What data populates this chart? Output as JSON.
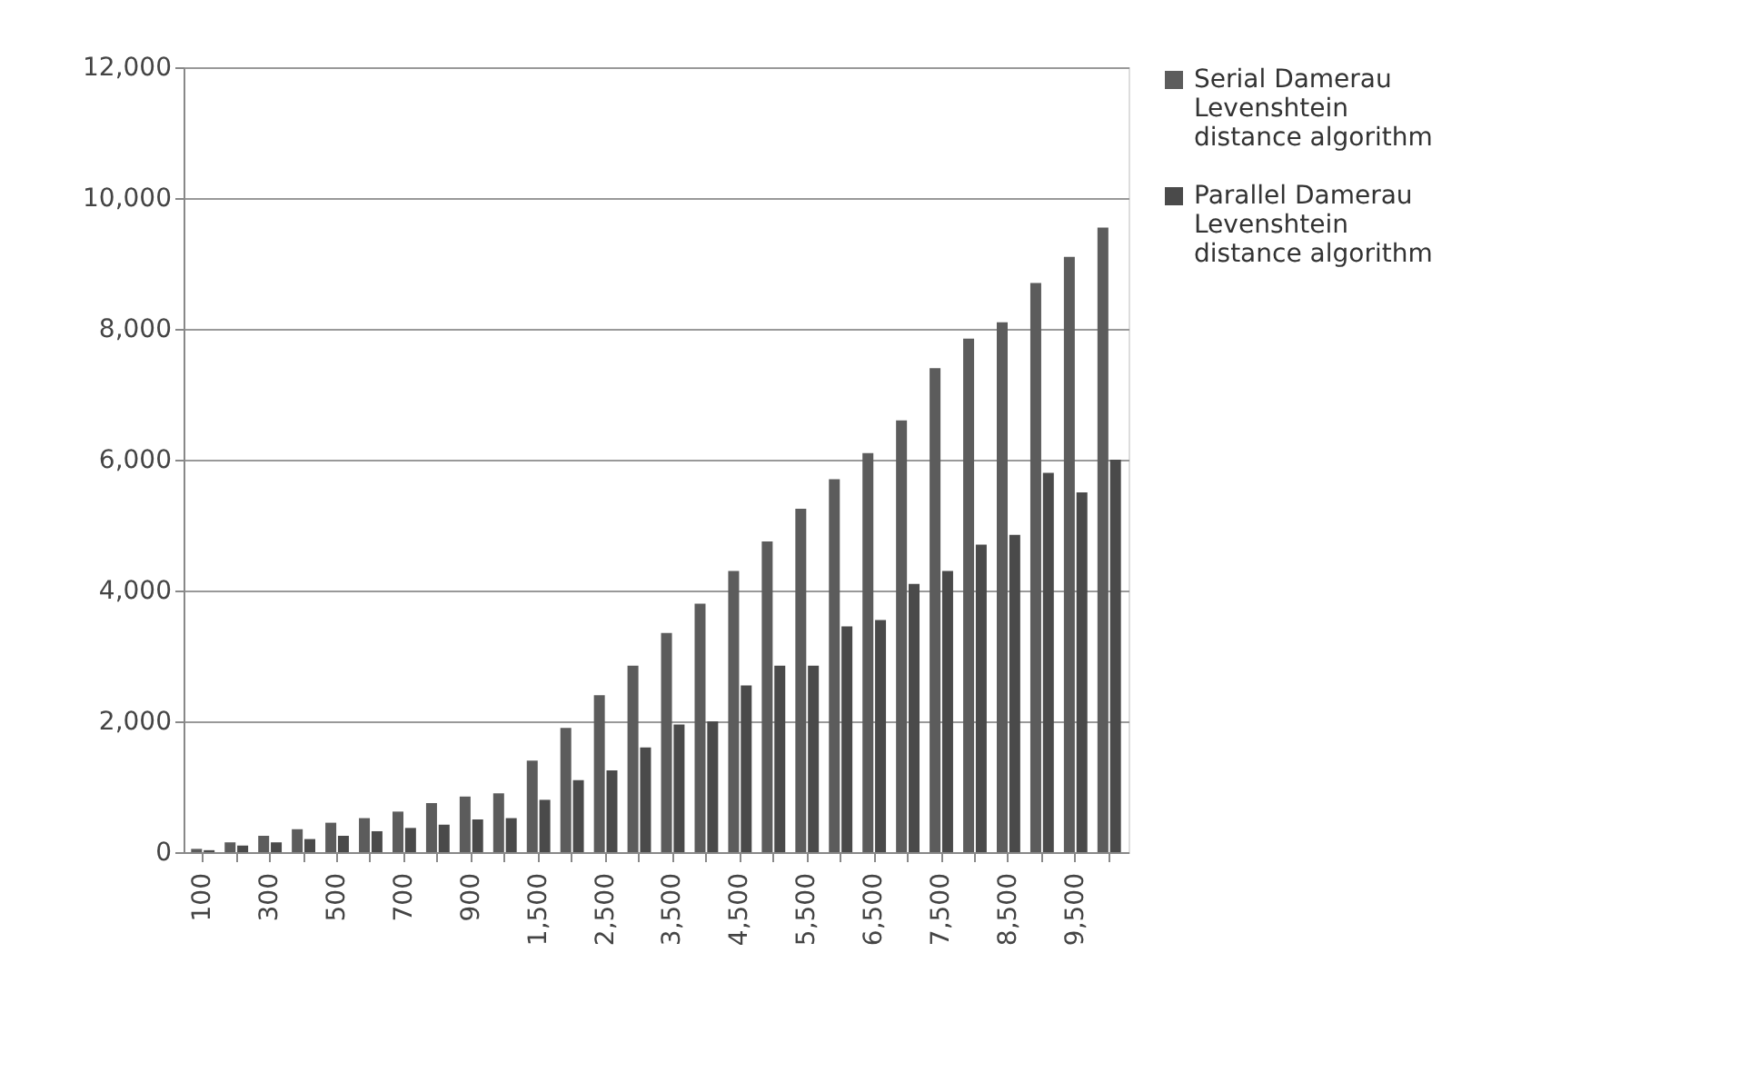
{
  "chart_data": {
    "type": "bar",
    "categories": [
      "100",
      null,
      "300",
      null,
      "500",
      null,
      "700",
      null,
      "900",
      null,
      "1,500",
      null,
      "2,500",
      null,
      "3,500",
      null,
      "4,500",
      null,
      "5,500",
      null,
      "6,500",
      null,
      "7,500",
      null,
      "8,500",
      null,
      "9,500",
      null
    ],
    "series": [
      {
        "name": "Serial Damerau Levenshtein distance algorithm",
        "color": "#5c5c5c",
        "values": [
          50,
          150,
          250,
          350,
          450,
          520,
          620,
          750,
          850,
          900,
          1400,
          1900,
          2400,
          2850,
          3350,
          3800,
          4300,
          4750,
          5250,
          5700,
          6100,
          6600,
          7400,
          7850,
          8100,
          8700,
          9100,
          9550
        ]
      },
      {
        "name": "Parallel Damerau Levenshtein distance algorithm",
        "color": "#4a4a4a",
        "values": [
          30,
          100,
          150,
          200,
          250,
          320,
          370,
          420,
          500,
          520,
          800,
          1100,
          1250,
          1600,
          1950,
          2000,
          2550,
          2850,
          2850,
          3450,
          3550,
          4100,
          4300,
          4700,
          4850,
          5800,
          5500,
          6000
        ]
      }
    ],
    "ylim": [
      0,
      12000
    ],
    "yticks": [
      {
        "value": 0,
        "label": "0"
      },
      {
        "value": 2000,
        "label": "2,000"
      },
      {
        "value": 4000,
        "label": "4,000"
      },
      {
        "value": 6000,
        "label": "6,000"
      },
      {
        "value": 8000,
        "label": "8,000"
      },
      {
        "value": 10000,
        "label": "10,000"
      },
      {
        "value": 12000,
        "label": "12,000"
      }
    ],
    "grid": "y",
    "legend": "right"
  }
}
